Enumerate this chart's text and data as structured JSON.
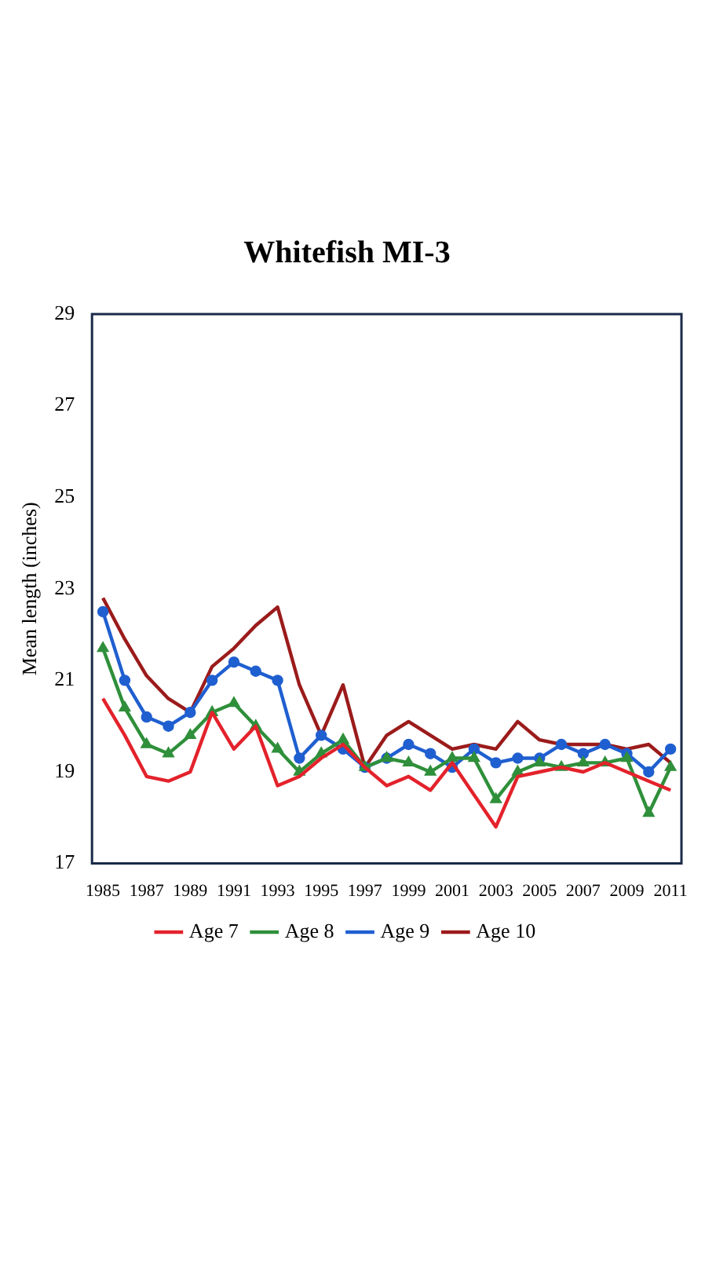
{
  "chart_data": {
    "type": "line",
    "title": "Whitefish MI-3",
    "ylabel": "Mean length (inches)",
    "x": [
      1985,
      1986,
      1987,
      1988,
      1989,
      1990,
      1991,
      1992,
      1993,
      1994,
      1995,
      1996,
      1997,
      1998,
      1999,
      2000,
      2001,
      2002,
      2003,
      2004,
      2005,
      2006,
      2007,
      2008,
      2009,
      2010,
      2011
    ],
    "xlim": [
      1984.5,
      2011.5
    ],
    "xticks": [
      1985,
      1987,
      1989,
      1991,
      1993,
      1995,
      1997,
      1999,
      2001,
      2003,
      2005,
      2007,
      2009,
      2011
    ],
    "ylim": [
      17,
      29
    ],
    "yticks": [
      17,
      19,
      21,
      23,
      25,
      27,
      29
    ],
    "grid": false,
    "legend": "bottom",
    "line_style": "solid",
    "series": [
      {
        "name": "Age 7",
        "color": "#e3222b",
        "marker": "none",
        "values": [
          20.6,
          19.8,
          18.9,
          18.8,
          19.0,
          20.3,
          19.5,
          20.0,
          18.7,
          18.9,
          19.3,
          19.6,
          19.1,
          18.7,
          18.9,
          18.6,
          19.2,
          18.5,
          17.8,
          18.9,
          19.0,
          19.1,
          19.0,
          19.2,
          19.0,
          18.8,
          18.6
        ]
      },
      {
        "name": "Age 8",
        "color": "#2f8f3a",
        "marker": "triangle",
        "values": [
          21.7,
          20.4,
          19.6,
          19.4,
          19.8,
          20.3,
          20.5,
          20.0,
          19.5,
          19.0,
          19.4,
          19.7,
          19.1,
          19.3,
          19.2,
          19.0,
          19.3,
          19.3,
          18.4,
          19.0,
          19.2,
          19.1,
          19.2,
          19.2,
          19.3,
          18.1,
          19.1
        ]
      },
      {
        "name": "Age 9",
        "color": "#1f5fd0",
        "marker": "circle",
        "values": [
          22.5,
          21.0,
          20.2,
          20.0,
          20.3,
          21.0,
          21.4,
          21.2,
          21.0,
          19.3,
          19.8,
          19.5,
          19.1,
          19.3,
          19.6,
          19.4,
          19.1,
          19.5,
          19.2,
          19.3,
          19.3,
          19.6,
          19.4,
          19.6,
          19.4,
          19.0,
          19.5
        ]
      },
      {
        "name": "Age 10",
        "color": "#9b1b1b",
        "marker": "none",
        "values": [
          22.8,
          21.9,
          21.1,
          20.6,
          20.3,
          21.3,
          21.7,
          22.2,
          22.6,
          20.9,
          19.8,
          20.9,
          19.1,
          19.8,
          20.1,
          19.8,
          19.5,
          19.6,
          19.5,
          20.1,
          19.7,
          19.6,
          19.6,
          19.6,
          19.5,
          19.6,
          19.2
        ]
      }
    ]
  }
}
